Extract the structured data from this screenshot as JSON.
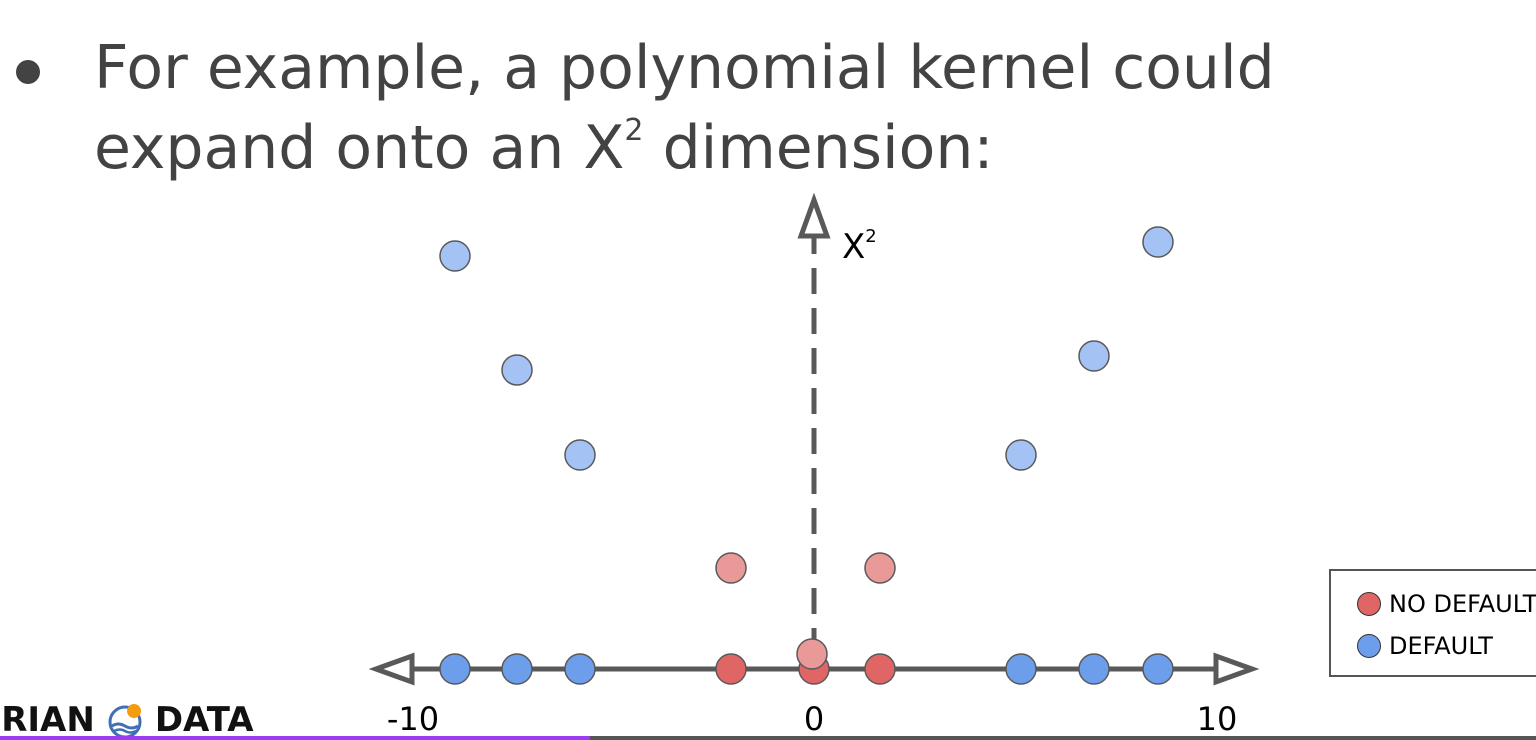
{
  "slide": {
    "bullet_text_main": "For example, a polynomial kernel could expand onto an X",
    "bullet_superscript": "2",
    "bullet_text_tail": " dimension:"
  },
  "diagram": {
    "y_axis_label": "X",
    "y_axis_label_superscript": "2",
    "x_tick_labels": [
      "-10",
      "0",
      "10"
    ],
    "colors": {
      "no_default": "#e06666",
      "no_default_light": "#ea9999",
      "default": "#6d9eeb",
      "default_light": "#a4c2f4",
      "axis": "#595959"
    }
  },
  "legend": {
    "no_default_label": "NO DEFAULT",
    "default_label": "DEFAULT"
  },
  "logo": {
    "text_left": "ERIAN",
    "text_right": "DATA"
  }
}
